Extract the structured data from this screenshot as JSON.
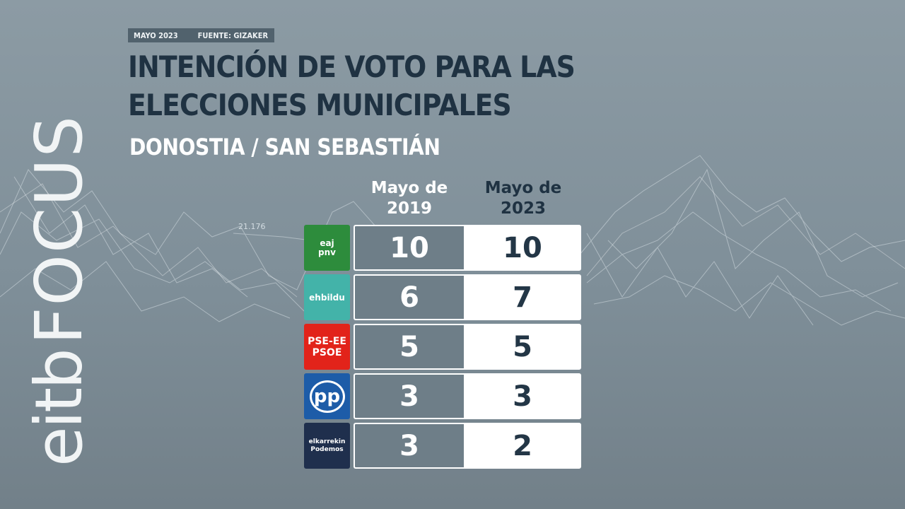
{
  "header": {
    "date_tag": "MAYO 2023",
    "source_tag": "FUENTE: GIZAKER",
    "title": "INTENCIÓN DE VOTO PARA LAS ELECCIONES MUNICIPALES",
    "subtitle": "DONOSTIA / SAN SEBASTIÁN"
  },
  "background_label": "21.176",
  "brand": {
    "eitb": "eitb",
    "focus": "FOCUS"
  },
  "chart_data": {
    "type": "table",
    "title": "INTENCIÓN DE VOTO PARA LAS ELECCIONES MUNICIPALES",
    "subtitle": "DONOSTIA / SAN SEBASTIÁN",
    "columns": [
      "Mayo de 2019",
      "Mayo de 2023"
    ],
    "rows": [
      {
        "party": "eaj pnv",
        "logo_text": [
          "eaj",
          "pnv"
        ],
        "logo_color": "#2d8c3c",
        "values": [
          10,
          10
        ]
      },
      {
        "party": "ehbildu",
        "logo_text": [
          "ehbildu"
        ],
        "logo_color": "#43b3a9",
        "values": [
          6,
          7
        ]
      },
      {
        "party": "PSE-EE PSOE",
        "logo_text": [
          "PSE-EE",
          "PSOE"
        ],
        "logo_color": "#e2231a",
        "values": [
          5,
          5
        ]
      },
      {
        "party": "PP",
        "logo_text": [
          "pp"
        ],
        "logo_color": "#1d5ca8",
        "values": [
          3,
          3
        ]
      },
      {
        "party": "elkarrekin",
        "logo_text": [
          "elkarrekin",
          "Podemos"
        ],
        "logo_color": "#1f2f4d",
        "values": [
          3,
          2
        ]
      }
    ]
  }
}
